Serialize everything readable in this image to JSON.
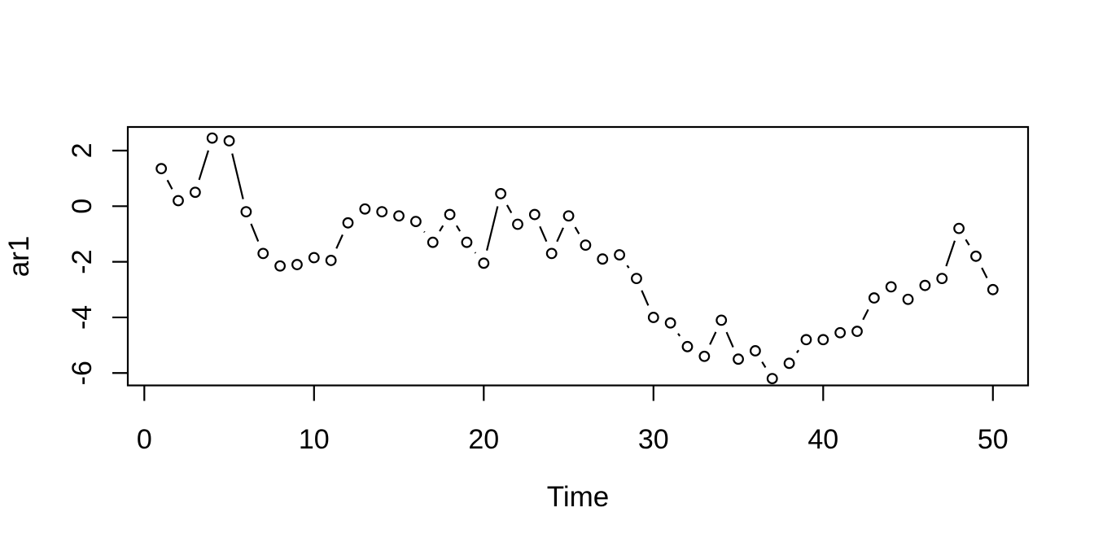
{
  "figure": {
    "background": "#ffffff",
    "foreground": "#000000"
  },
  "chart_data": {
    "type": "line",
    "subtype": "R-base-ts-plot-type-b-open-circles-with-gapped-segments",
    "title": "",
    "xlabel": "Time",
    "ylabel": "ar1",
    "legend": "none",
    "grid": false,
    "color": "#000000",
    "point_style": "open-circle",
    "xticks": [
      0,
      10,
      20,
      30,
      40,
      50
    ],
    "yticks": [
      2,
      0,
      -2,
      -4,
      -6
    ],
    "xlim": [
      -1,
      52
    ],
    "ylim": [
      -6.45,
      2.85
    ],
    "x": [
      1,
      2,
      3,
      4,
      5,
      6,
      7,
      8,
      9,
      10,
      11,
      12,
      13,
      14,
      15,
      16,
      17,
      18,
      19,
      20,
      21,
      22,
      23,
      24,
      25,
      26,
      27,
      28,
      29,
      30,
      31,
      32,
      33,
      34,
      35,
      36,
      37,
      38,
      39,
      40,
      41,
      42,
      43,
      44,
      45,
      46,
      47,
      48,
      49,
      50
    ],
    "values": [
      1.35,
      0.2,
      0.5,
      2.45,
      2.35,
      -0.2,
      -1.7,
      -2.15,
      -2.1,
      -1.85,
      -1.95,
      -0.6,
      -0.1,
      -0.2,
      -0.35,
      -0.55,
      -1.3,
      -0.3,
      -1.3,
      -2.05,
      0.45,
      -0.65,
      -0.3,
      -1.7,
      -0.35,
      -1.4,
      -1.9,
      -1.75,
      -2.6,
      -4.0,
      -4.2,
      -5.05,
      -5.4,
      -4.1,
      -5.5,
      -5.2,
      -6.2,
      -5.65,
      -4.8,
      -4.8,
      -4.55,
      -4.5,
      -3.3,
      -2.9,
      -3.35,
      -2.85,
      -2.6,
      -0.8,
      -1.8,
      -3.0
    ]
  }
}
